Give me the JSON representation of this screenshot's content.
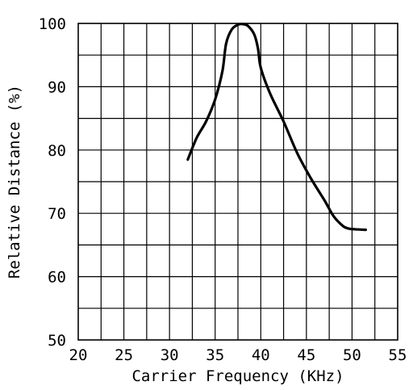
{
  "chart_data": {
    "type": "line",
    "title": "",
    "xlabel": "Carrier Frequency (KHz)",
    "ylabel": "Relative Distance (%)",
    "xlim": [
      20,
      55
    ],
    "ylim": [
      50,
      100
    ],
    "x_ticks": [
      "20",
      "25",
      "30",
      "35",
      "40",
      "45",
      "50",
      "55"
    ],
    "y_ticks": [
      "50",
      "60",
      "70",
      "80",
      "90",
      "100"
    ],
    "grid": true,
    "series": [
      {
        "x": [
          32.0,
          33.0,
          34.0,
          35.0,
          35.8,
          36.2,
          36.8,
          37.5,
          38.0,
          38.6,
          39.3,
          39.7,
          40.0,
          41.0,
          42.5,
          44.0,
          45.5,
          47.0,
          48.0,
          49.0,
          49.6,
          50.2,
          51.5
        ],
        "y": [
          78.5,
          82.0,
          84.5,
          88.0,
          92.5,
          96.8,
          99.0,
          99.8,
          99.9,
          99.6,
          98.2,
          96.0,
          93.0,
          89.0,
          84.5,
          79.5,
          75.5,
          72.0,
          69.5,
          68.0,
          67.6,
          67.5,
          67.4
        ]
      }
    ]
  }
}
